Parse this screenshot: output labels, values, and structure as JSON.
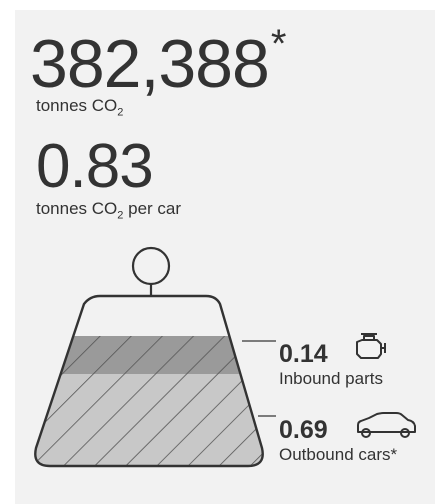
{
  "total": {
    "value": "382,388",
    "asterisk": "*",
    "unit": "tonnes CO",
    "unit_sub": "2"
  },
  "per_car": {
    "value": "0.83",
    "unit": "tonnes CO",
    "unit_sub": "2",
    "unit_suffix": " per car"
  },
  "breakdown": [
    {
      "value": "0.14",
      "label": "Inbound parts",
      "icon": "engine-icon"
    },
    {
      "value": "0.69",
      "label": "Outbound cars*",
      "icon": "car-icon"
    }
  ],
  "colors": {
    "background": "#f2f2f2",
    "outline": "#333333",
    "inbound_fill": "#9a9a9a",
    "outbound_fill": "#c8c8c8"
  }
}
